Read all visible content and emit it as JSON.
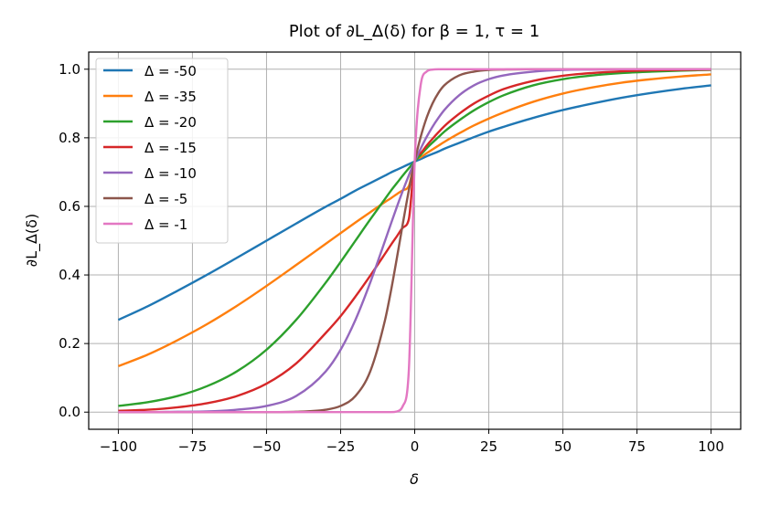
{
  "chart_data": {
    "type": "line",
    "title": "Plot of ∂L_Δ(δ) for β = 1, τ = 1",
    "xlabel": "δ",
    "ylabel": "∂L_Δ(δ)",
    "xlim": [
      -110,
      110
    ],
    "ylim": [
      -0.05,
      1.05
    ],
    "xticks": [
      -100,
      -75,
      -50,
      -25,
      0,
      25,
      50,
      75,
      100
    ],
    "xtick_labels": [
      "−100",
      "−75",
      "−50",
      "−25",
      "0",
      "25",
      "50",
      "75",
      "100"
    ],
    "yticks": [
      0.0,
      0.2,
      0.4,
      0.6,
      0.8,
      1.0
    ],
    "ytick_labels": [
      "0.0",
      "0.2",
      "0.4",
      "0.6",
      "0.8",
      "1.0"
    ],
    "grid": true,
    "legend_position": "top-left",
    "x": [
      -100,
      -90,
      -80,
      -70,
      -60,
      -50,
      -40,
      -30,
      -25,
      -20,
      -15,
      -10,
      -8,
      -6,
      -4,
      -2,
      0,
      2,
      4,
      6,
      8,
      10,
      15,
      20,
      25,
      30,
      40,
      50,
      60,
      70,
      80,
      90,
      100
    ],
    "series": [
      {
        "name": "Δ = -50",
        "color": "#1f77b4",
        "values": [
          0.269,
          0.309,
          0.354,
          0.401,
          0.45,
          0.5,
          0.55,
          0.599,
          0.622,
          0.646,
          0.668,
          0.69,
          0.699,
          0.707,
          0.715,
          0.723,
          0.731,
          0.738,
          0.746,
          0.753,
          0.76,
          0.768,
          0.785,
          0.802,
          0.818,
          0.832,
          0.858,
          0.881,
          0.9,
          0.917,
          0.931,
          0.943,
          0.953
        ]
      },
      {
        "name": "Δ = -35",
        "color": "#ff7f0e",
        "values": [
          0.134,
          0.168,
          0.21,
          0.257,
          0.31,
          0.368,
          0.429,
          0.491,
          0.522,
          0.553,
          0.583,
          0.613,
          0.624,
          0.636,
          0.647,
          0.659,
          0.731,
          0.743,
          0.755,
          0.766,
          0.777,
          0.788,
          0.813,
          0.836,
          0.856,
          0.874,
          0.905,
          0.929,
          0.947,
          0.961,
          0.971,
          0.979,
          0.985
        ]
      },
      {
        "name": "Δ = -20",
        "color": "#2ca02c",
        "values": [
          0.018,
          0.029,
          0.047,
          0.076,
          0.119,
          0.182,
          0.269,
          0.378,
          0.438,
          0.5,
          0.562,
          0.622,
          0.646,
          0.668,
          0.69,
          0.711,
          0.731,
          0.75,
          0.769,
          0.786,
          0.802,
          0.818,
          0.851,
          0.88,
          0.904,
          0.924,
          0.953,
          0.971,
          0.982,
          0.989,
          0.993,
          0.996,
          0.998
        ]
      },
      {
        "name": "Δ = -15",
        "color": "#d62728",
        "values": [
          0.004,
          0.007,
          0.014,
          0.026,
          0.047,
          0.083,
          0.142,
          0.231,
          0.28,
          0.337,
          0.398,
          0.462,
          0.488,
          0.513,
          0.538,
          0.562,
          0.731,
          0.755,
          0.777,
          0.797,
          0.816,
          0.834,
          0.87,
          0.9,
          0.923,
          0.942,
          0.966,
          0.981,
          0.989,
          0.994,
          0.997,
          0.998,
          0.999
        ]
      },
      {
        "name": "Δ = -10",
        "color": "#9467bd",
        "values": [
          0.0,
          0.0,
          0.001,
          0.002,
          0.007,
          0.018,
          0.047,
          0.119,
          0.182,
          0.269,
          0.378,
          0.5,
          0.55,
          0.599,
          0.646,
          0.69,
          0.731,
          0.768,
          0.802,
          0.832,
          0.858,
          0.881,
          0.924,
          0.953,
          0.971,
          0.982,
          0.993,
          0.998,
          0.999,
          1.0,
          1.0,
          1.0,
          1.0
        ]
      },
      {
        "name": "Δ = -5",
        "color": "#8c564b",
        "values": [
          0.0,
          0.0,
          0.0,
          0.0,
          0.0,
          0.0,
          0.001,
          0.007,
          0.018,
          0.047,
          0.119,
          0.269,
          0.354,
          0.45,
          0.55,
          0.646,
          0.731,
          0.802,
          0.858,
          0.9,
          0.931,
          0.953,
          0.982,
          0.993,
          0.998,
          0.999,
          1.0,
          1.0,
          1.0,
          1.0,
          1.0,
          1.0,
          1.0
        ]
      },
      {
        "name": "Δ = -1",
        "color": "#e377c2",
        "values": [
          0.0,
          0.0,
          0.0,
          0.0,
          0.0,
          0.0,
          0.0,
          0.0,
          0.0,
          0.0,
          0.0,
          0.0,
          0.0,
          0.002,
          0.018,
          0.119,
          0.731,
          0.953,
          0.993,
          0.999,
          1.0,
          1.0,
          1.0,
          1.0,
          1.0,
          1.0,
          1.0,
          1.0,
          1.0,
          1.0,
          1.0,
          1.0,
          1.0
        ]
      }
    ]
  }
}
